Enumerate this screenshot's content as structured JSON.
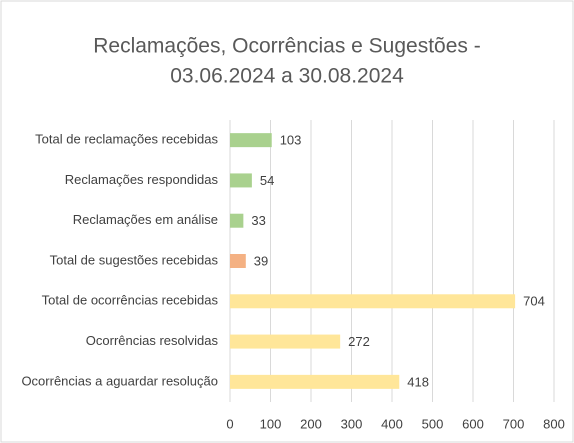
{
  "chart_data": {
    "type": "barh",
    "title": [
      "Reclamações, Ocorrências e Sugestões -",
      "03.06.2024 a 30.08.2024"
    ],
    "categories": [
      "Total de reclamações recebidas",
      "Reclamações respondidas",
      "Reclamações em análise",
      "Total de sugestões recebidas",
      "Total de ocorrências recebidas",
      "Ocorrências resolvidas",
      "Ocorrências a aguardar resolução"
    ],
    "values": [
      103,
      54,
      33,
      39,
      704,
      272,
      418
    ],
    "colors": [
      "#a9d18e",
      "#a9d18e",
      "#a9d18e",
      "#f4b183",
      "#ffe699",
      "#ffe699",
      "#ffe699"
    ],
    "xlim": [
      0,
      800
    ],
    "xticks": [
      0,
      100,
      200,
      300,
      400,
      500,
      600,
      700,
      800
    ],
    "grid": true
  }
}
